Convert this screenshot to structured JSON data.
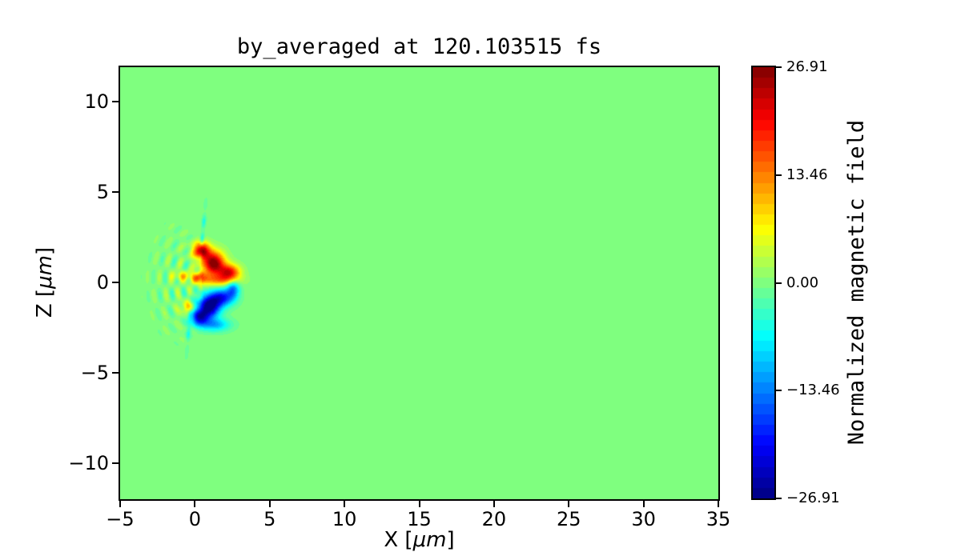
{
  "chart_data": {
    "type": "heatmap",
    "title": "by_averaged at 120.103515 fs",
    "xlabel": {
      "pre": "X [",
      "unit": "μm",
      "post": "]"
    },
    "ylabel": {
      "pre": "Z [",
      "unit": "μm",
      "post": "]"
    },
    "xlim": [
      -5,
      35
    ],
    "ylim": [
      -12.0,
      11.9
    ],
    "x_ticks": [
      {
        "value": -5,
        "label": "−5"
      },
      {
        "value": 0,
        "label": "0"
      },
      {
        "value": 5,
        "label": "5"
      },
      {
        "value": 10,
        "label": "10"
      },
      {
        "value": 15,
        "label": "15"
      },
      {
        "value": 20,
        "label": "20"
      },
      {
        "value": 25,
        "label": "25"
      },
      {
        "value": 30,
        "label": "30"
      },
      {
        "value": 35,
        "label": "35"
      }
    ],
    "y_ticks": [
      {
        "value": 10,
        "label": "10"
      },
      {
        "value": 5,
        "label": "5"
      },
      {
        "value": 0,
        "label": "0"
      },
      {
        "value": -5,
        "label": "−5"
      },
      {
        "value": -10,
        "label": "−10"
      }
    ],
    "colormap": {
      "name": "jet",
      "levels": 41,
      "zero_color": "#80ff80",
      "max_color": "#800000",
      "min_color": "#000080"
    },
    "colorbar": {
      "label": "Normalized magnetic field",
      "vmin": -26.91,
      "vmax": 26.91,
      "ticks": [
        {
          "value": 26.91,
          "label": "26.91"
        },
        {
          "value": 13.46,
          "label": "13.46"
        },
        {
          "value": 0,
          "label": "0.00"
        },
        {
          "value": -13.46,
          "label": "−13.46"
        },
        {
          "value": -26.91,
          "label": "−26.91"
        }
      ]
    },
    "field": {
      "background_value": 0,
      "gaussians": [
        {
          "x": 0.45,
          "z": 1.75,
          "sx": 0.38,
          "sz": 0.32,
          "a": 24
        },
        {
          "x": 1.25,
          "z": 1.05,
          "sx": 0.5,
          "sz": 0.45,
          "a": 27.5
        },
        {
          "x": 2.3,
          "z": 0.55,
          "sx": 0.48,
          "sz": 0.3,
          "a": 21
        },
        {
          "x": 0.3,
          "z": 0.25,
          "sx": 0.38,
          "sz": 0.22,
          "a": 13
        },
        {
          "x": 1.6,
          "z": 0.12,
          "sx": 0.85,
          "sz": 0.22,
          "a": 11
        },
        {
          "x": -0.85,
          "z": 0.35,
          "sx": 0.45,
          "sz": 0.18,
          "a": 8
        },
        {
          "x": -0.5,
          "z": -1.4,
          "sx": 0.3,
          "sz": 0.25,
          "a": 9
        },
        {
          "x": 0.95,
          "z": -1.35,
          "sx": 0.5,
          "sz": 0.42,
          "a": -27.5
        },
        {
          "x": 0.3,
          "z": -1.95,
          "sx": 0.4,
          "sz": 0.3,
          "a": -20
        },
        {
          "x": 1.8,
          "z": -0.85,
          "sx": 0.55,
          "sz": 0.33,
          "a": -19
        },
        {
          "x": 2.55,
          "z": -0.35,
          "sx": 0.3,
          "sz": 0.35,
          "a": -13
        },
        {
          "x": 1.3,
          "z": -2.35,
          "sx": 0.7,
          "sz": 0.25,
          "a": -11
        }
      ],
      "wake": {
        "apex_x": 1.0,
        "z_scale": 0.9,
        "r_min": 0.55,
        "r_max": 5.2,
        "half_angle": 1.25,
        "r_peak": 1.9,
        "r_width": 1.9,
        "amp": 5.0,
        "wavelength": 0.8
      },
      "streaks": [
        {
          "x0": 0.2,
          "slope": 0.12,
          "z0": 0.4,
          "z1": 4.7,
          "sigma_z": 1.5,
          "width": 0.1,
          "amp": -7.5,
          "dash_freq": 6
        },
        {
          "x0": -0.15,
          "slope": 0.1,
          "z0": -4.6,
          "z1": -0.4,
          "sigma_z": 1.4,
          "width": 0.1,
          "amp": -5.5,
          "dash_freq": 6
        }
      ]
    }
  }
}
